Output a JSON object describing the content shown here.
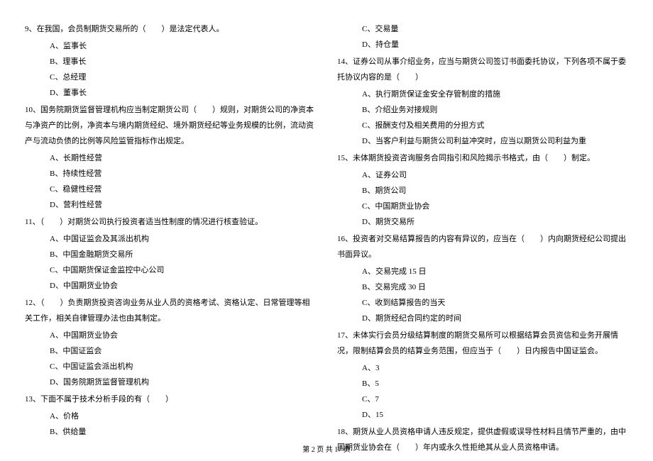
{
  "leftColumn": {
    "q9": {
      "text": "9、在我国，会员制期货交易所的（　　）是法定代表人。",
      "options": [
        "A、监事长",
        "B、理事长",
        "C、总经理",
        "D、董事长"
      ]
    },
    "q10": {
      "text": "10、国务院期货监督管理机构应当制定期货公司（　　）规则，对期货公司的净资本与净资产的比例，净资本与境内期货经纪、境外期货经纪等业务规模的比例，流动资产与流动负债的比例等风险监管指标作出规定。",
      "options": [
        "A、长期性经营",
        "B、持续性经营",
        "C、稳健性经营",
        "D、营利性经营"
      ]
    },
    "q11": {
      "text": "11、（　　）对期货公司执行投资者适当性制度的情况进行核查验证。",
      "options": [
        "A、中国证监会及其派出机构",
        "B、中国金融期货交易所",
        "C、中国期货保证金监控中心公司",
        "D、中国期货业协会"
      ]
    },
    "q12": {
      "text": "12、（　　）负责期货投资咨询业务从业人员的资格考试、资格认定、日常管理等相关工作，相关自律管理办法也由其制定。",
      "options": [
        "A、中国期货业协会",
        "B、中国证监会",
        "C、中国证监会派出机构",
        "D、国务院期货监督管理机构"
      ]
    },
    "q13": {
      "text": "13、下面不属于技术分析手段的有（　　）",
      "options": [
        "A、价格",
        "B、供给量"
      ]
    }
  },
  "rightColumn": {
    "q13cont": {
      "options": [
        "C、交易量",
        "D、持仓量"
      ]
    },
    "q14": {
      "text": "14、证券公司从事介绍业务，应当与期货公司签订书面委托协议，下列各项不属于委托协议内容的是（　　）",
      "options": [
        "A、执行期货保证金安全存管制度的措施",
        "B、介绍业务对接规则",
        "C、报酬支付及相关费用的分担方式",
        "D、当客户利益与期货公司利益冲突时，应当以期货公司利益为重"
      ]
    },
    "q15": {
      "text": "15、未体期货投资咨询服务合同指引和风险揭示书格式，由（　　）制定。",
      "options": [
        "A、证券公司",
        "B、期货公司",
        "C、中国期货业协会",
        "D、期货交易所"
      ]
    },
    "q16": {
      "text": "16、投资者对交易结算报告的内容有异议的，应当在（　　）内向期货经纪公司提出书面异议。",
      "options": [
        "A、交易完成 15 日",
        "B、交易完成 30 日",
        "C、收到结算报告的当天",
        "D、期货经纪合同约定的时间"
      ]
    },
    "q17": {
      "text": "17、未体实行会员分级结算制度的期货交易所可以根据结算会员资信和业务开展情况，限制结算会员的结算业务范围，但应当于（　　）日内报告中国证监会。",
      "options": [
        "A、3",
        "B、5",
        "C、7",
        "D、15"
      ]
    },
    "q18": {
      "text": "18、期货从业人员资格申请人违反规定，提供虚假或误导性材料且情节严重的，由中国期货业协会在（　　）年内或永久性拒绝其从业人员资格申请。"
    }
  },
  "footer": "第 2 页 共 17 页"
}
